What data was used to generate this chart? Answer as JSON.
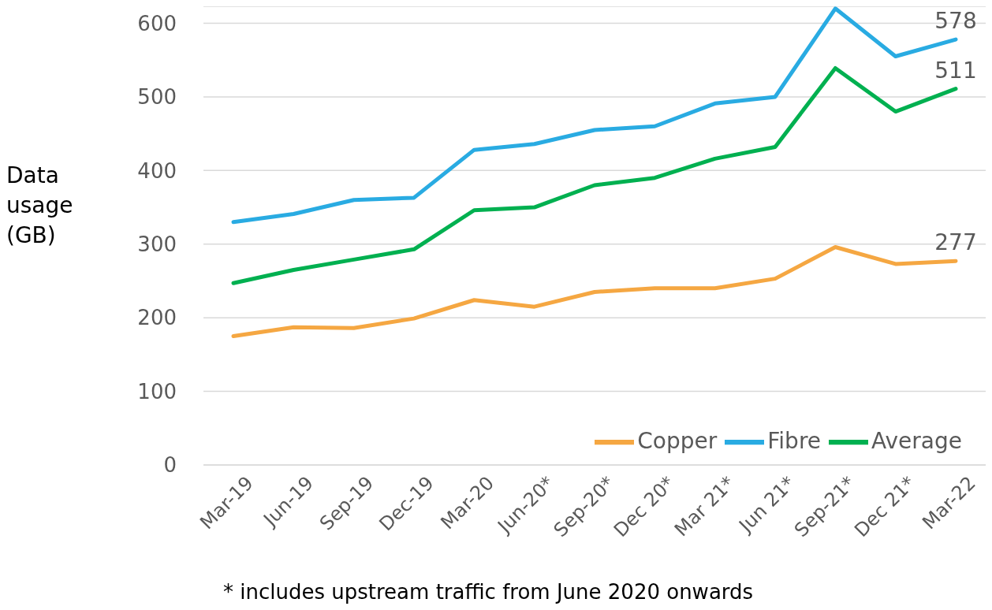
{
  "chart_data": {
    "type": "line",
    "ylabel": "Data usage (GB)",
    "categories": [
      "Mar-19",
      "Jun-19",
      "Sep-19",
      "Dec-19",
      "Mar-20",
      "Jun-20*",
      "Sep-20*",
      "Dec 20*",
      "Mar 21*",
      "Jun 21*",
      "Sep-21*",
      "Dec 21*",
      "Mar-22"
    ],
    "series": [
      {
        "name": "Copper",
        "color": "#f5a742",
        "values": [
          175,
          187,
          186,
          199,
          224,
          215,
          235,
          240,
          240,
          253,
          296,
          273,
          277
        ],
        "value_labels": [
          null,
          null,
          null,
          null,
          null,
          null,
          null,
          null,
          null,
          null,
          null,
          null,
          "277"
        ]
      },
      {
        "name": "Fibre",
        "color": "#29abe2",
        "values": [
          330,
          341,
          360,
          363,
          428,
          436,
          455,
          460,
          491,
          500,
          620,
          555,
          578
        ],
        "value_labels": [
          null,
          null,
          null,
          null,
          null,
          null,
          null,
          null,
          null,
          null,
          null,
          null,
          "578"
        ]
      },
      {
        "name": "Average",
        "color": "#00b050",
        "values": [
          247,
          265,
          279,
          293,
          346,
          350,
          380,
          390,
          416,
          432,
          539,
          480,
          511
        ],
        "value_labels": [
          null,
          null,
          null,
          null,
          null,
          null,
          null,
          null,
          null,
          null,
          null,
          null,
          "511"
        ]
      }
    ],
    "ylim": [
      0,
      623
    ],
    "yticks": [
      0,
      100,
      200,
      300,
      400,
      500,
      600
    ],
    "grid": "y",
    "legend": "bottom right",
    "marker": "none",
    "line_style": "solid",
    "annotations": [
      "* includes upstream traffic from June 2020 onwards"
    ]
  }
}
